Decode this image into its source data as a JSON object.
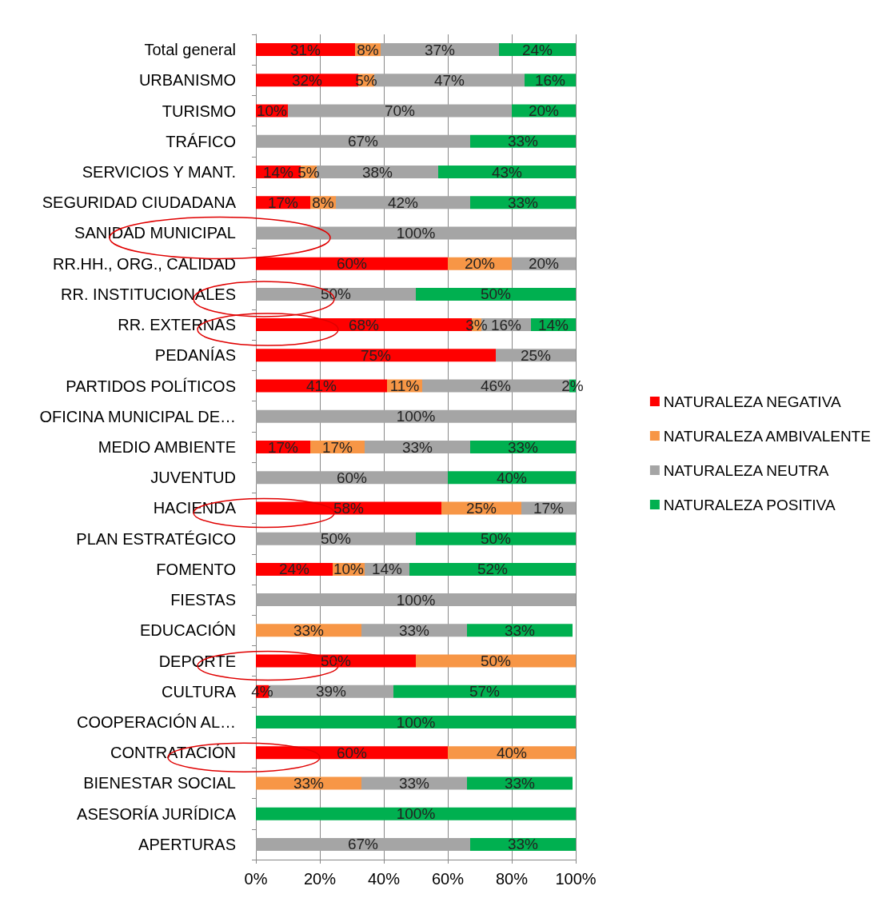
{
  "chart_data": {
    "type": "bar",
    "orientation": "horizontal",
    "stacked": true,
    "categories": [
      "Total general",
      "URBANISMO",
      "TURISMO",
      "TRÁFICO",
      "SERVICIOS Y MANT.",
      "SEGURIDAD CIUDADANA",
      "SANIDAD MUNICIPAL",
      "RR.HH., ORG., CALIDAD",
      "RR. INSTITUCIONALES",
      "RR. EXTERNAS",
      "PEDANÍAS",
      "PARTIDOS POLÍTICOS",
      "OFICINA MUNICIPAL DE…",
      "MEDIO AMBIENTE",
      "JUVENTUD",
      "HACIENDA",
      "PLAN ESTRATÉGICO",
      "FOMENTO",
      "FIESTAS",
      "EDUCACIÓN",
      "DEPORTE",
      "CULTURA",
      "COOPERACIÓN AL…",
      "CONTRATACIÓN",
      "BIENESTAR SOCIAL",
      "ASESORÍA JURÍDICA",
      "APERTURAS"
    ],
    "series": [
      {
        "name": "NATURALEZA NEGATIVA",
        "color": "#ff0000",
        "values": [
          31,
          32,
          10,
          null,
          14,
          17,
          null,
          60,
          null,
          67.5,
          75,
          41,
          null,
          17,
          null,
          58,
          null,
          24,
          null,
          null,
          50,
          4,
          null,
          60,
          null,
          null,
          null
        ],
        "value_labels": [
          "31%",
          "32%",
          "10%",
          null,
          "14%",
          "17%",
          null,
          "60%",
          null,
          "68%",
          "75%",
          "41%",
          null,
          "17%",
          null,
          "58%",
          null,
          "24%",
          null,
          null,
          "50%",
          "4%",
          null,
          "60%",
          null,
          null,
          null
        ]
      },
      {
        "name": "NATURALEZA AMBIVALENTE",
        "color": "#f79646",
        "values": [
          8,
          5,
          null,
          null,
          5,
          8,
          null,
          20,
          null,
          3,
          null,
          11,
          null,
          17,
          null,
          25,
          null,
          10,
          null,
          33,
          50,
          null,
          null,
          40,
          33,
          null,
          null
        ],
        "value_labels": [
          "8%",
          "5%",
          null,
          null,
          "5%",
          "8%",
          null,
          "20%",
          null,
          "3%",
          null,
          "11%",
          null,
          "17%",
          null,
          "25%",
          null,
          "10%",
          null,
          "33%",
          "50%",
          null,
          null,
          "40%",
          "33%",
          null,
          null
        ]
      },
      {
        "name": "NATURALEZA NEUTRA",
        "color": "#a5a5a5",
        "values": [
          37,
          47,
          70,
          67,
          38,
          42,
          100,
          20,
          50,
          15.5,
          25,
          46,
          100,
          33,
          60,
          17,
          50,
          14,
          100,
          33,
          null,
          39,
          null,
          null,
          33,
          null,
          67
        ],
        "value_labels": [
          "37%",
          "47%",
          "70%",
          "67%",
          "38%",
          "42%",
          "100%",
          "20%",
          "50%",
          "16%",
          "25%",
          "46%",
          "100%",
          "33%",
          "60%",
          "17%",
          "50%",
          "14%",
          "100%",
          "33%",
          null,
          "39%",
          null,
          null,
          "33%",
          null,
          "67%"
        ]
      },
      {
        "name": "NATURALEZA POSITIVA",
        "color": "#00b050",
        "values": [
          24,
          16,
          20,
          33,
          43,
          33,
          null,
          null,
          50,
          14,
          null,
          2,
          null,
          33,
          40,
          null,
          50,
          52,
          null,
          33,
          null,
          57,
          100,
          null,
          33,
          100,
          33
        ],
        "value_labels": [
          "24%",
          "16%",
          "20%",
          "33%",
          "43%",
          "33%",
          null,
          null,
          "50%",
          "14%",
          null,
          "2%",
          null,
          "33%",
          "40%",
          null,
          "50%",
          "52%",
          null,
          "33%",
          null,
          "57%",
          "100%",
          null,
          "33%",
          "100%",
          "33%"
        ]
      }
    ],
    "xlim": [
      0,
      100
    ],
    "xticks": [
      {
        "value": 0,
        "label": "0%"
      },
      {
        "value": 20,
        "label": "20%"
      },
      {
        "value": 40,
        "label": "40%"
      },
      {
        "value": 60,
        "label": "60%"
      },
      {
        "value": 80,
        "label": "80%"
      },
      {
        "value": 100,
        "label": "100%"
      }
    ],
    "grid": "x",
    "legend": "right"
  }
}
